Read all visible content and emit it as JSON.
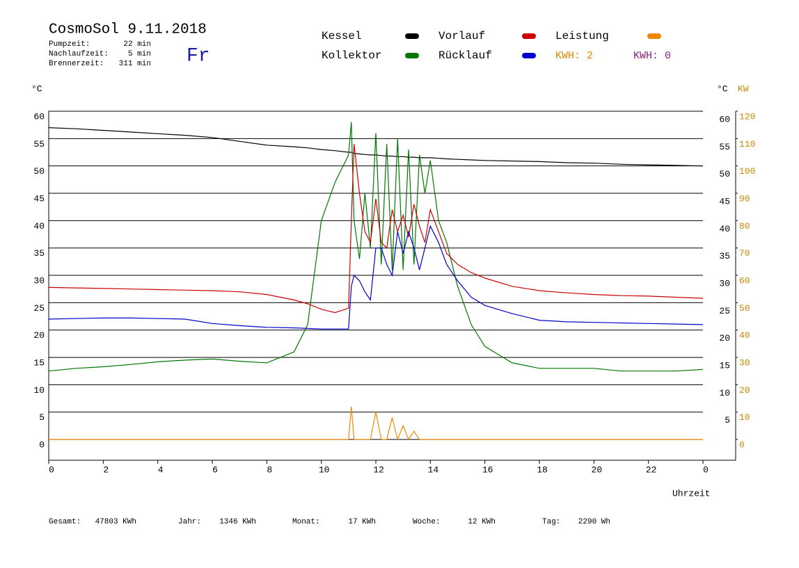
{
  "chart_data": {
    "type": "line",
    "title": "CosmoSol 9.11.2018",
    "day": "Fr",
    "info": [
      [
        "Pumpzeit:",
        "22 min"
      ],
      [
        "Nachlaufzeit:",
        "5 min"
      ],
      [
        "Brennerzeit:",
        "311 min"
      ]
    ],
    "kwh_labels": [
      "KWH: 2",
      "KWH: 0"
    ],
    "y_unit": "°C",
    "y2_units": [
      "°C",
      "KW"
    ],
    "x_label": "Uhrzeit",
    "totals": [
      [
        "Gesamt:",
        "47803 KWh"
      ],
      [
        "Jahr:",
        "1346 KWh"
      ],
      [
        "Monat:",
        "17 KWh"
      ],
      [
        "Woche:",
        "12 KWh"
      ],
      [
        "Tag:",
        "2290 Wh"
      ]
    ],
    "x": [
      0,
      1,
      2,
      3,
      4,
      5,
      6,
      7,
      8,
      9,
      9.5,
      10,
      10.5,
      11,
      11.1,
      11.2,
      11.4,
      11.6,
      11.8,
      12.0,
      12.2,
      12.4,
      12.6,
      12.8,
      13.0,
      13.2,
      13.4,
      13.6,
      13.8,
      14.0,
      14.3,
      14.6,
      15,
      15.5,
      16,
      17,
      18,
      19,
      20,
      21,
      22,
      23,
      24
    ],
    "xlim": [
      0,
      25.2
    ],
    "xticks": [
      0,
      2,
      4,
      6,
      8,
      10,
      12,
      14,
      16,
      18,
      20,
      22,
      {
        "value": 24,
        "label": "0"
      }
    ],
    "ylim": [
      -3.8,
      60
    ],
    "yticks": [
      0,
      5,
      10,
      15,
      20,
      25,
      30,
      35,
      40,
      45,
      50,
      55,
      60
    ],
    "y2lim": [
      -7.6,
      120
    ],
    "y2ticks": [
      0,
      10,
      20,
      30,
      40,
      50,
      60,
      70,
      80,
      90,
      100,
      110,
      120
    ],
    "grid": true,
    "series": [
      {
        "name": "Kessel",
        "color": "#000000",
        "values": [
          57,
          56.8,
          56.5,
          56.2,
          55.9,
          55.6,
          55.2,
          54.5,
          53.8,
          53.5,
          53.3,
          53,
          52.8,
          52.5,
          52.5,
          52.3,
          52.2,
          52.1,
          52,
          52,
          51.9,
          51.8,
          51.8,
          51.7,
          51.7,
          51.6,
          51.6,
          51.5,
          51.5,
          51.5,
          51.4,
          51.3,
          51.2,
          51.1,
          51,
          50.9,
          50.8,
          50.6,
          50.5,
          50.3,
          50.2,
          50.1,
          50
        ]
      },
      {
        "name": "Kollektor",
        "color": "#007700",
        "values": [
          12.5,
          13,
          13.3,
          13.7,
          14.2,
          14.5,
          14.7,
          14.3,
          14,
          16,
          21,
          40,
          47,
          52,
          58,
          40,
          33,
          45,
          35,
          56,
          32,
          54,
          31,
          55,
          31,
          53,
          32,
          52,
          45,
          51,
          40,
          36,
          28,
          21,
          17,
          14,
          13,
          13,
          13,
          12.5,
          12.5,
          12.5,
          12.8
        ]
      },
      {
        "name": "Vorlauf",
        "color": "#cc0000",
        "values": [
          27.8,
          27.7,
          27.6,
          27.5,
          27.4,
          27.3,
          27.2,
          27,
          26.5,
          25.5,
          24.8,
          23.8,
          23.2,
          24,
          40,
          54,
          45,
          38,
          36,
          44,
          36,
          35,
          42,
          38,
          41,
          37,
          43,
          39,
          36,
          42,
          38,
          34,
          32,
          30.5,
          29.5,
          28,
          27.2,
          26.8,
          26.5,
          26.3,
          26.2,
          26,
          25.8
        ]
      },
      {
        "name": "Rücklauf",
        "color": "#0000cc",
        "values": [
          22,
          22.1,
          22.2,
          22.2,
          22.1,
          22,
          21.2,
          20.8,
          20.5,
          20.4,
          20.3,
          20.2,
          20.2,
          20.2,
          28,
          30,
          29,
          27,
          25.5,
          35,
          35,
          32,
          30,
          38,
          34,
          38,
          35,
          31,
          35,
          39,
          36,
          32,
          29,
          26,
          24.5,
          23,
          21.8,
          21.5,
          21.4,
          21.3,
          21.2,
          21.1,
          21
        ]
      },
      {
        "name": "Leistung",
        "color": "#ee8800",
        "axis": "y2",
        "values": [
          0,
          0,
          0,
          0,
          0,
          0,
          0,
          0,
          0,
          0,
          0,
          0,
          0,
          0,
          12,
          0,
          0,
          0,
          0,
          10,
          0,
          0,
          8,
          0,
          5,
          0,
          3,
          0,
          0,
          0,
          0,
          0,
          0,
          0,
          0,
          0,
          0,
          0,
          0,
          0,
          0,
          0,
          0
        ]
      }
    ]
  }
}
